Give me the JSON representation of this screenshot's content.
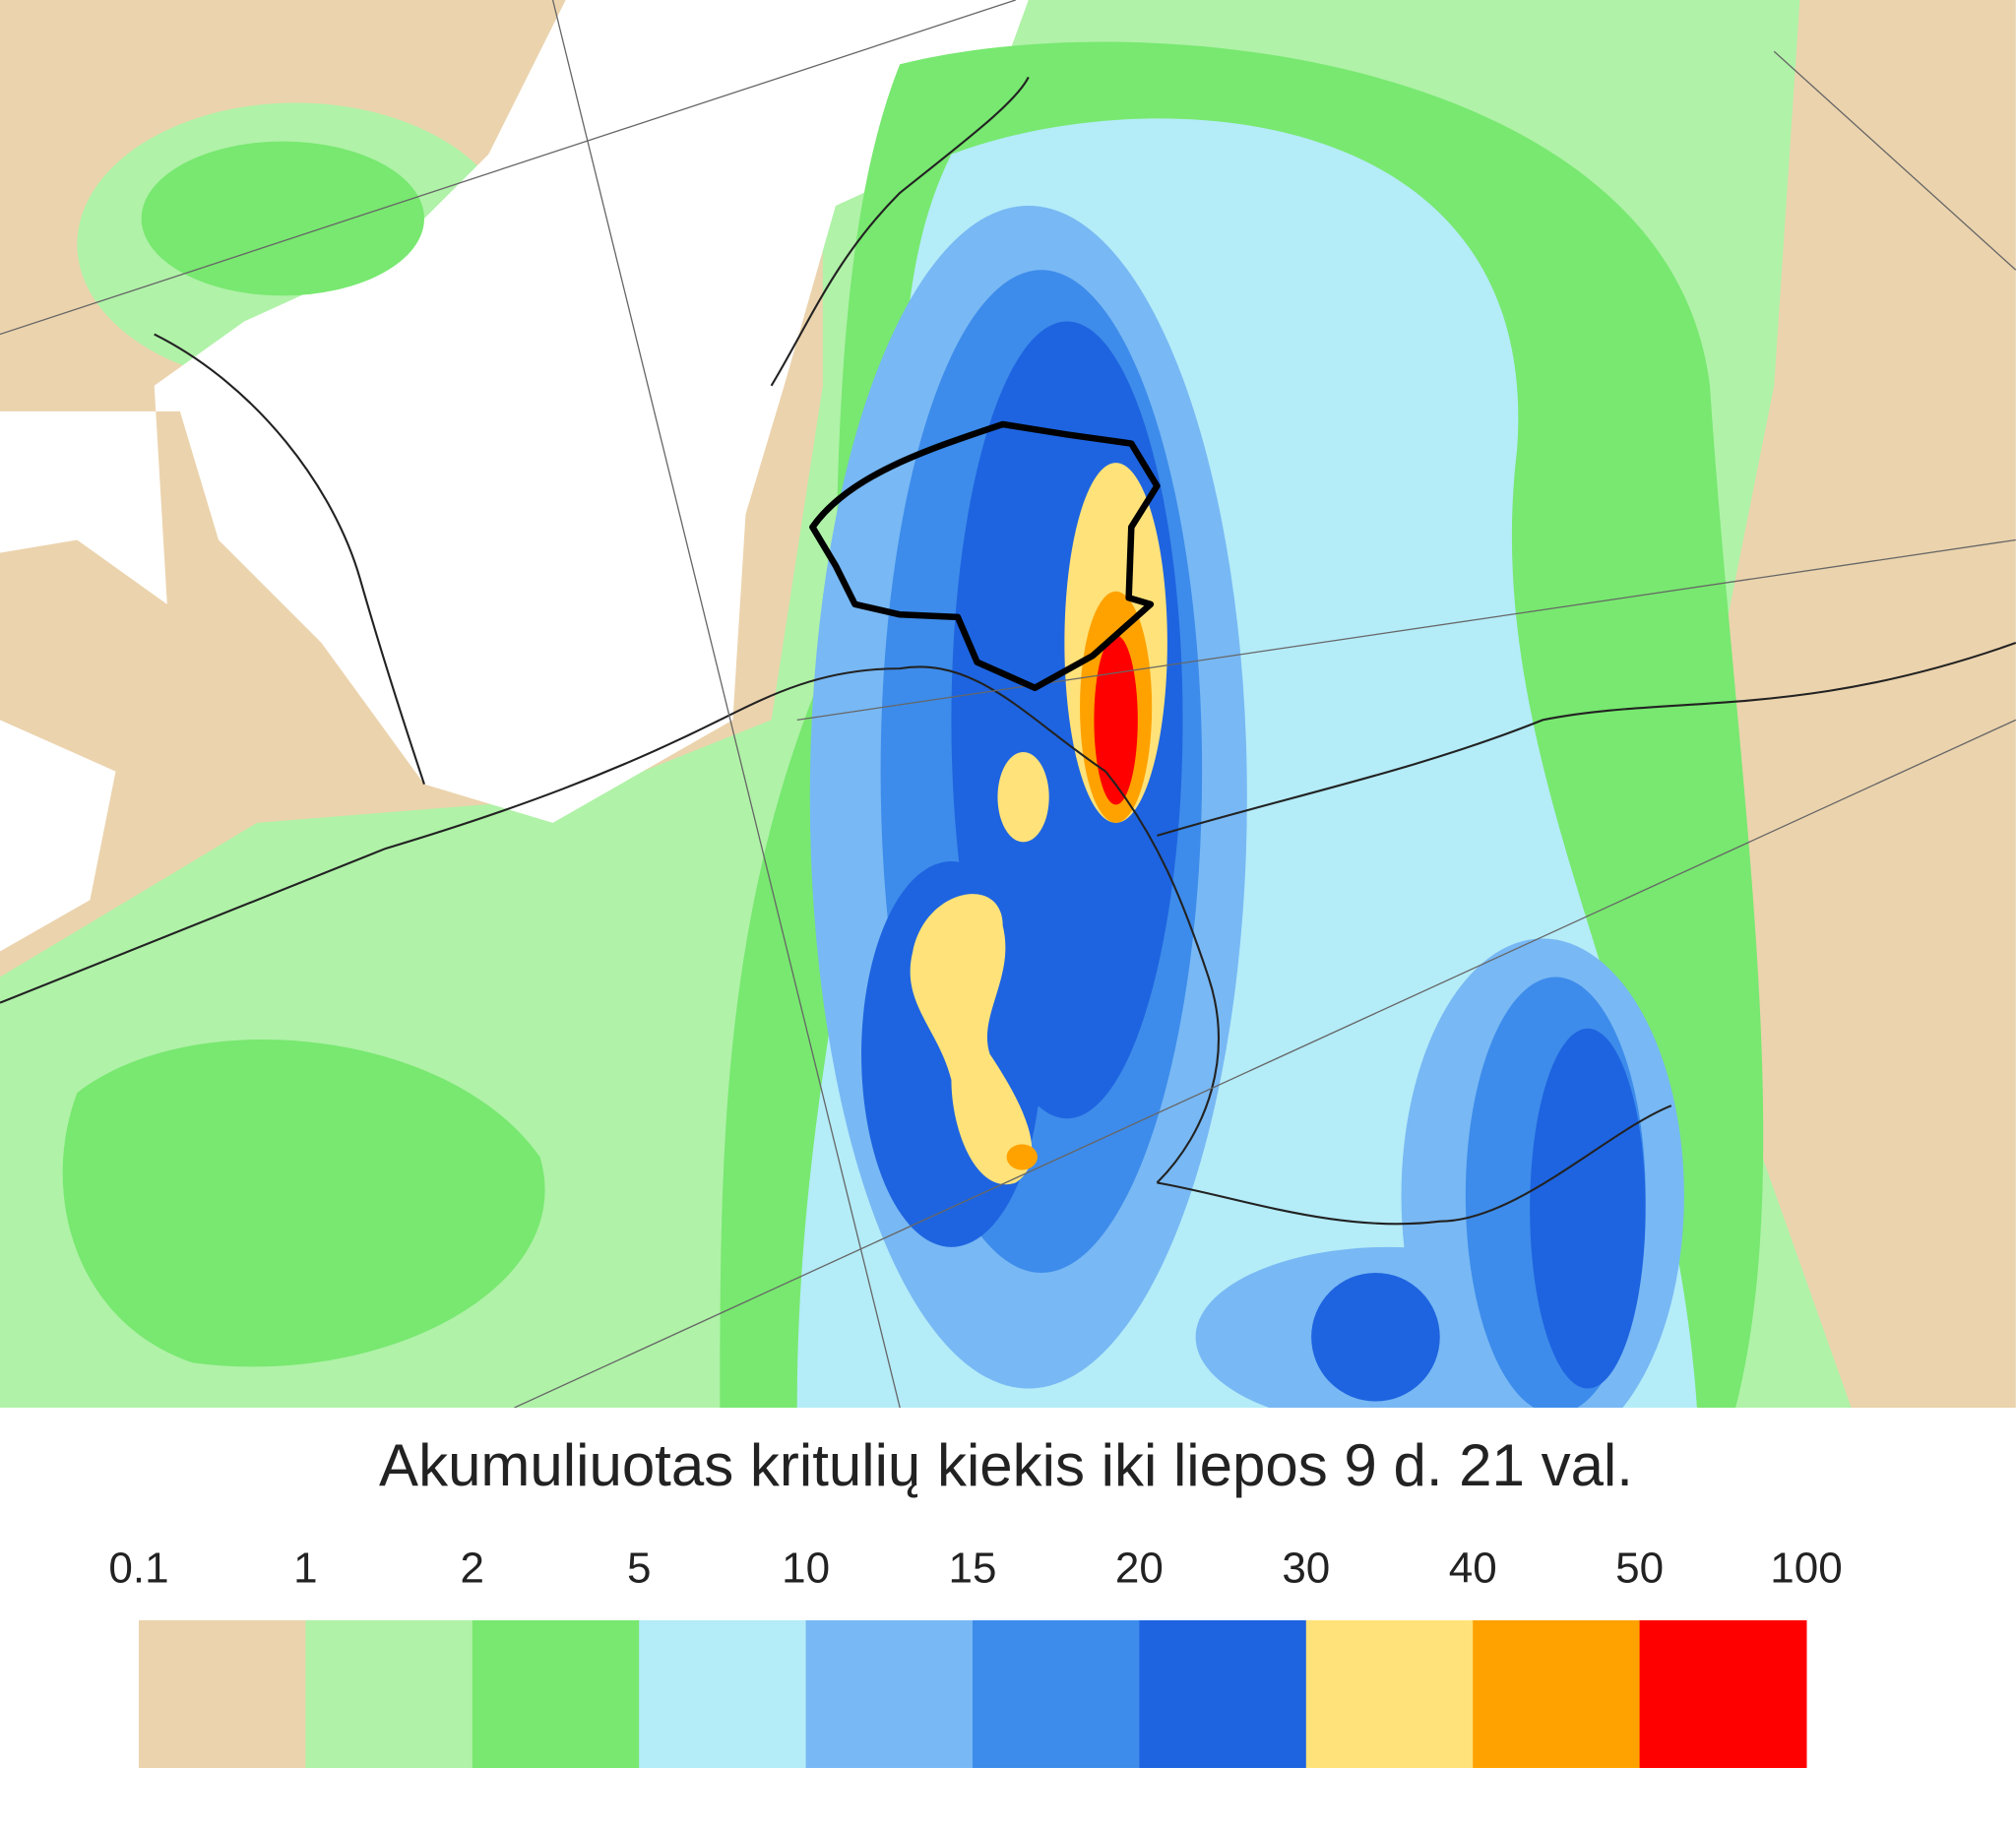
{
  "map": {
    "title": "Akumuliuotas kritulių kiekis iki liepos 9 d. 21 val.",
    "legend": {
      "levels": [
        0.1,
        1,
        2,
        5,
        10,
        15,
        20,
        30,
        40,
        50,
        100
      ],
      "colors": [
        "#ebd3ad",
        "#b0f2a8",
        "#78e870",
        "#b4ecf8",
        "#78b8f4",
        "#3d8ceb",
        "#1e64e0",
        "#ffe27a",
        "#ffa200",
        "#ff0000"
      ]
    }
  }
}
